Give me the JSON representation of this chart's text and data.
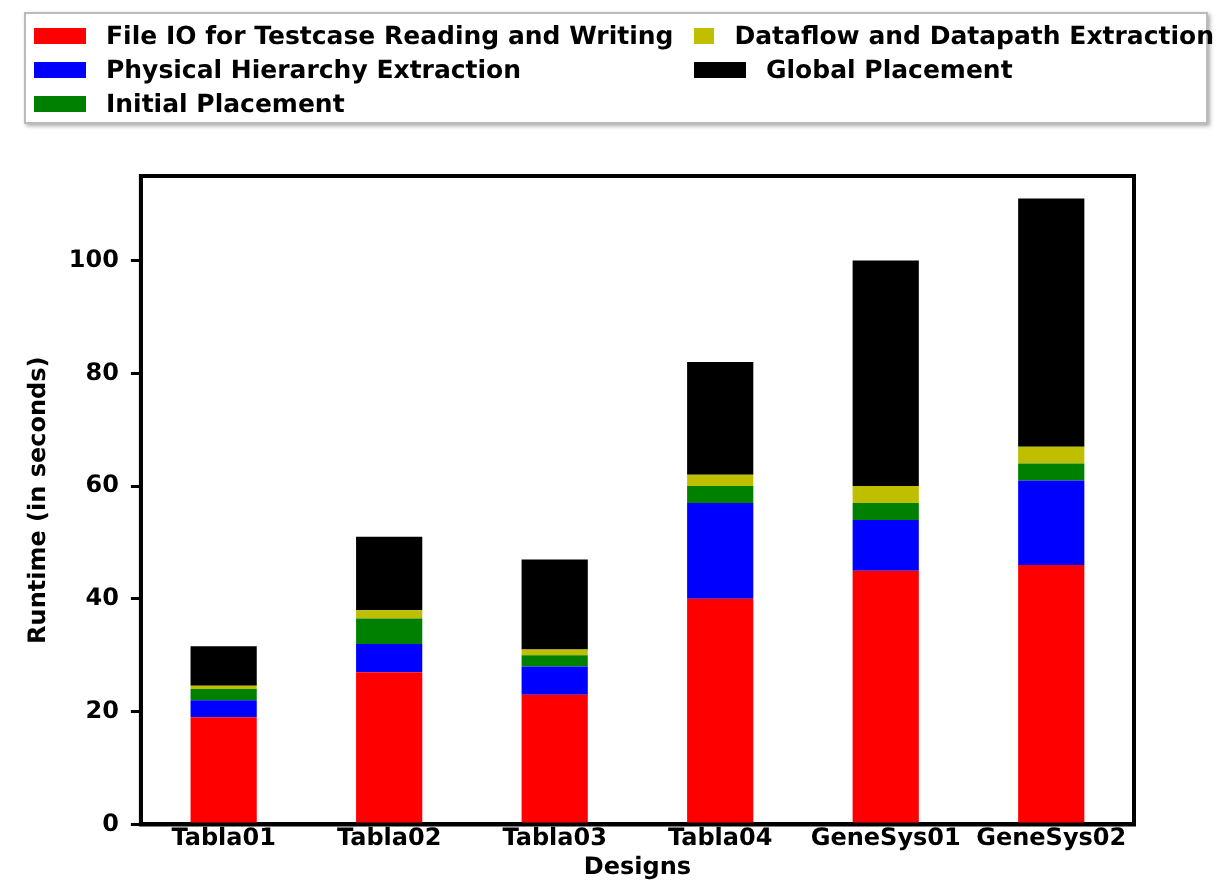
{
  "chart_data": {
    "type": "bar",
    "stacked": true,
    "xlabel": "Designs",
    "ylabel": "Runtime (in seconds)",
    "categories": [
      "Tabla01",
      "Tabla02",
      "Tabla03",
      "Tabla04",
      "GeneSys01",
      "GeneSys02"
    ],
    "series": [
      {
        "name": "File IO for Testcase Reading and Writing",
        "color": "#ff0000",
        "values": [
          19,
          27,
          23,
          40,
          45,
          46
        ]
      },
      {
        "name": "Physical Hierarchy Extraction",
        "color": "#0000ff",
        "values": [
          3,
          5,
          5,
          17,
          9,
          15
        ]
      },
      {
        "name": "Initial Placement",
        "color": "#008000",
        "values": [
          2,
          4.5,
          2,
          3,
          3,
          3
        ]
      },
      {
        "name": "Dataflow and Datapath Extraction",
        "color": "#bfbf00",
        "values": [
          0.6,
          1.5,
          1,
          2,
          3,
          3
        ]
      },
      {
        "name": "Global Placement",
        "color": "#000000",
        "values": [
          7,
          13,
          16,
          20,
          40,
          44
        ]
      }
    ],
    "ylim": [
      0,
      115
    ],
    "yticks": [
      0,
      20,
      40,
      60,
      80,
      100
    ],
    "grid": false,
    "legend": "top"
  }
}
